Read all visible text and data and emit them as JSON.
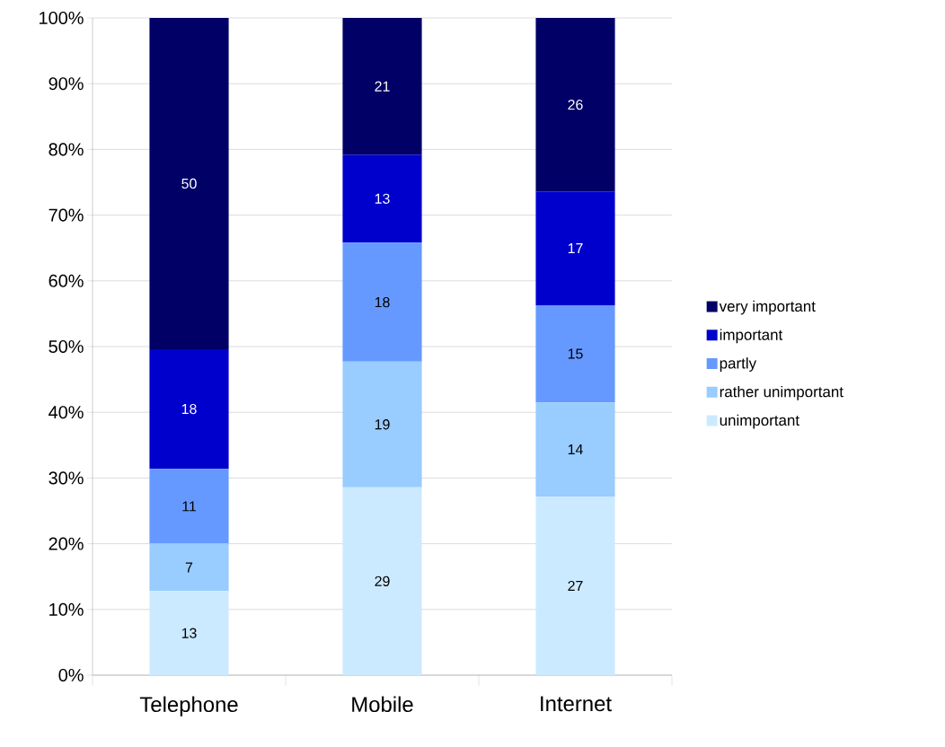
{
  "chart_data": {
    "type": "bar",
    "stacked": true,
    "categories": [
      "Telephone",
      "Mobile",
      "Internet"
    ],
    "series": [
      {
        "name": "unimportant",
        "color": "#cceaff",
        "values": [
          12.8,
          28.6,
          27.2
        ],
        "value_labels": [
          "13",
          "29",
          "27"
        ]
      },
      {
        "name": "rather unimportant",
        "color": "#99ccff",
        "values": [
          7.2,
          19.1,
          14.3
        ],
        "value_labels": [
          "7",
          "19",
          "14"
        ]
      },
      {
        "name": "partly",
        "color": "#6699ff",
        "values": [
          11.4,
          18.1,
          14.8
        ],
        "value_labels": [
          "11",
          "18",
          "15"
        ]
      },
      {
        "name": "important",
        "color": "#0000cc",
        "values": [
          18.2,
          13.4,
          17.3
        ],
        "value_labels": [
          "18",
          "13",
          "17"
        ]
      },
      {
        "name": "very important",
        "color": "#000066",
        "values": [
          50.4,
          20.8,
          26.4
        ],
        "value_labels": [
          "50",
          "21",
          "26"
        ]
      }
    ],
    "ylim": [
      0,
      100
    ],
    "yticks": [
      {
        "value": 0,
        "label": "0%"
      },
      {
        "value": 10,
        "label": "10%"
      },
      {
        "value": 20,
        "label": "20%"
      },
      {
        "value": 30,
        "label": "30%"
      },
      {
        "value": 40,
        "label": "40%"
      },
      {
        "value": 50,
        "label": "50%"
      },
      {
        "value": 60,
        "label": "60%"
      },
      {
        "value": 70,
        "label": "70%"
      },
      {
        "value": 80,
        "label": "80%"
      },
      {
        "value": 90,
        "label": "90%"
      },
      {
        "value": 100,
        "label": "100%"
      }
    ],
    "grid": "y",
    "legend": "right"
  }
}
